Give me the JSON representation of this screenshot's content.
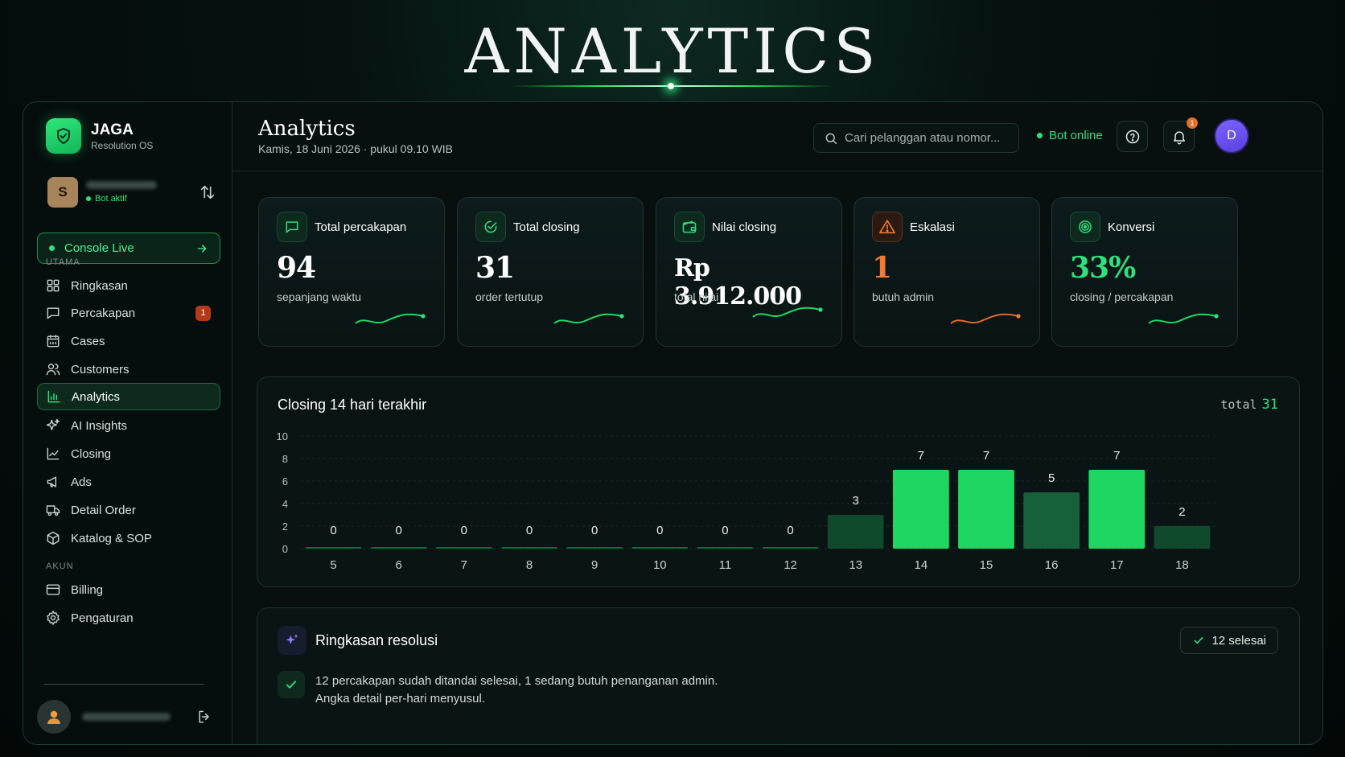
{
  "hero": {
    "title": "ANALYTICS"
  },
  "brand": {
    "name": "JAGA",
    "subtitle": "Resolution OS"
  },
  "user": {
    "initial": "S",
    "status": "Bot aktif"
  },
  "console_button": {
    "label": "Console Live"
  },
  "sidebar": {
    "section_main": "UTAMA",
    "section_account": "AKUN",
    "items": [
      {
        "label": "Ringkasan",
        "icon": "grid-icon"
      },
      {
        "label": "Percakapan",
        "icon": "chat-icon",
        "badge": "1"
      },
      {
        "label": "Cases",
        "icon": "calendar-icon"
      },
      {
        "label": "Customers",
        "icon": "users-icon"
      },
      {
        "label": "Analytics",
        "icon": "bar-chart-icon",
        "active": true
      },
      {
        "label": "AI Insights",
        "icon": "sparkle-icon"
      },
      {
        "label": "Closing",
        "icon": "line-chart-icon"
      },
      {
        "label": "Ads",
        "icon": "megaphone-icon"
      },
      {
        "label": "Detail Order",
        "icon": "truck-icon"
      },
      {
        "label": "Katalog & SOP",
        "icon": "box-icon"
      }
    ],
    "account_items": [
      {
        "label": "Billing",
        "icon": "card-icon"
      },
      {
        "label": "Pengaturan",
        "icon": "gear-icon"
      }
    ]
  },
  "header": {
    "title": "Analytics",
    "date": "Kamis, 18 Juni 2026 · pukul 09.10 WIB",
    "search_placeholder": "Cari pelanggan atau nomor...",
    "bot_status": "Bot online",
    "notification_count": "1",
    "profile_initial": "D"
  },
  "kpis": [
    {
      "label": "Total percakapan",
      "value": "94",
      "sub": "sepanjang waktu",
      "icon": "chat-icon",
      "tone": "white"
    },
    {
      "label": "Total closing",
      "value": "31",
      "sub": "order tertutup",
      "icon": "check-circle-icon",
      "tone": "white"
    },
    {
      "label": "Nilai closing",
      "value": "Rp 3.912.000",
      "sub": "total nilai",
      "icon": "wallet-icon",
      "tone": "white"
    },
    {
      "label": "Eskalasi",
      "value": "1",
      "sub": "butuh admin",
      "icon": "warning-icon",
      "tone": "orange"
    },
    {
      "label": "Konversi",
      "value": "33%",
      "sub": "closing / percakapan",
      "icon": "target-icon",
      "tone": "green"
    }
  ],
  "chart": {
    "title": "Closing 14 hari terakhir",
    "total_label": "total",
    "total_value": "31"
  },
  "chart_data": {
    "type": "bar",
    "categories": [
      "5",
      "6",
      "7",
      "8",
      "9",
      "10",
      "11",
      "12",
      "13",
      "14",
      "15",
      "16",
      "17",
      "18"
    ],
    "values": [
      0,
      0,
      0,
      0,
      0,
      0,
      0,
      0,
      3,
      7,
      7,
      5,
      7,
      2
    ],
    "yticks": [
      0,
      2,
      4,
      6,
      8,
      10
    ],
    "ylim": [
      0,
      10
    ],
    "grid": true,
    "colors": {
      "low": "#0f4a2c",
      "high": "#1ed760"
    }
  },
  "summary": {
    "title": "Ringkasan resolusi",
    "badge": "12 selesai",
    "line1": "12 percakapan sudah ditandai selesai, 1 sedang butuh penanganan admin.",
    "line2": "Angka detail per-hari menyusul."
  },
  "colors": {
    "accent": "#2fe07d",
    "warning": "#f07a36",
    "background": "#07100f"
  }
}
